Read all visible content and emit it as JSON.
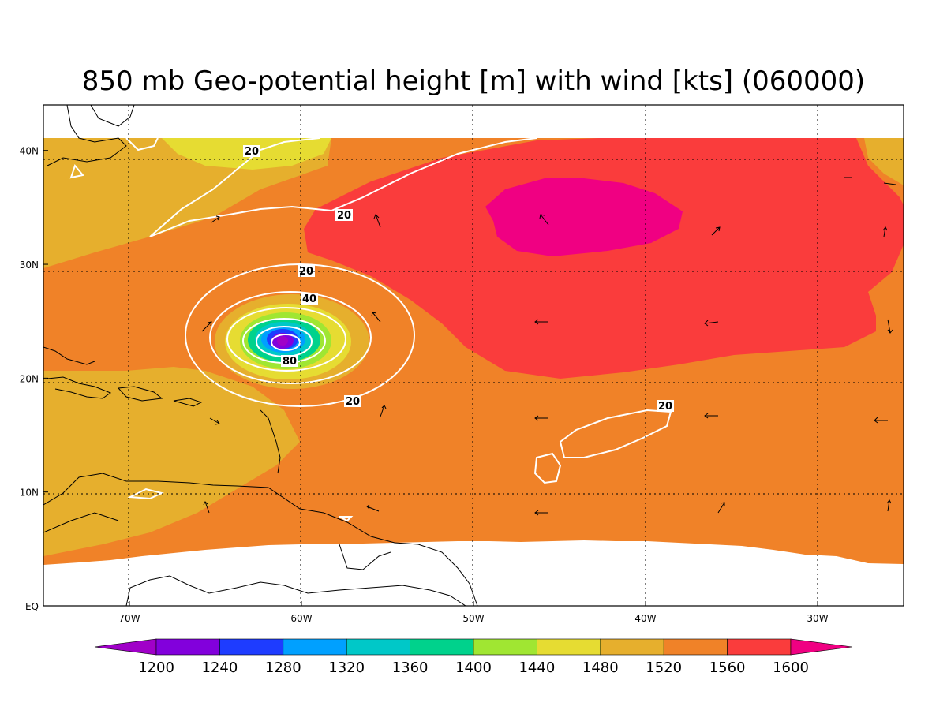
{
  "title": "850 mb Geo-potential height [m] with wind [kts] (060000)",
  "map": {
    "lon_range": [
      -75,
      -25
    ],
    "lat_range": [
      0,
      44
    ],
    "lon_ticks": [
      {
        "lon": -70,
        "label": "70W"
      },
      {
        "lon": -60,
        "label": "60W"
      },
      {
        "lon": -50,
        "label": "50W"
      },
      {
        "lon": -40,
        "label": "40W"
      },
      {
        "lon": -30,
        "label": "30W"
      }
    ],
    "lat_ticks": [
      {
        "lat": 0,
        "label": "EQ"
      },
      {
        "lat": 10,
        "label": "10N"
      },
      {
        "lat": 20,
        "label": "20N"
      },
      {
        "lat": 30,
        "label": "30N"
      },
      {
        "lat": 40,
        "label": "40N"
      }
    ],
    "wind_contour_labels": [
      "20",
      "20",
      "20",
      "40",
      "80",
      "20",
      "20"
    ]
  },
  "colorbar": {
    "levels": [
      "1200",
      "1240",
      "1280",
      "1320",
      "1360",
      "1400",
      "1440",
      "1480",
      "1520",
      "1560",
      "1600"
    ],
    "colors": [
      "#a000c8",
      "#8200dc",
      "#1e3cff",
      "#00a0ff",
      "#00c8c8",
      "#00d28c",
      "#a0e632",
      "#e6dc32",
      "#e6af2d",
      "#f08228",
      "#fa3c3c",
      "#f00082"
    ]
  }
}
